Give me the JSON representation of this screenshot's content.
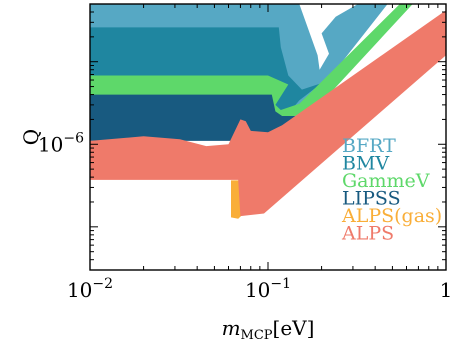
{
  "chart_data": {
    "type": "area",
    "xlabel_main": "m",
    "xlabel_sub": "MCP",
    "xlabel_unit": "[eV]",
    "ylabel": "Q",
    "x_scale": "log",
    "y_scale": "log",
    "xlim": [
      0.01,
      1.0
    ],
    "ylim": [
      3e-08,
      5e-05
    ],
    "x_ticks": [
      {
        "value": 0.01,
        "base": "10",
        "exp": "−2"
      },
      {
        "value": 0.1,
        "base": "10",
        "exp": "−1"
      },
      {
        "value": 1.0,
        "label": "1"
      }
    ],
    "y_ticks": [
      {
        "value": 1e-06,
        "base": "10",
        "exp": "−6"
      }
    ],
    "legend_placement": "lower-right",
    "series": [
      {
        "name": "BFRT",
        "color": "#56a8c4",
        "points": [
          [
            0.01,
            5e-05
          ],
          [
            0.15,
            5e-05
          ],
          [
            0.19,
            1.2e-05
          ],
          [
            0.195,
            8e-06
          ],
          [
            0.22,
            1.25e-05
          ],
          [
            0.2,
            2.2e-05
          ],
          [
            0.24,
            3.5e-05
          ],
          [
            0.32,
            5e-05
          ],
          [
            0.47,
            5e-05
          ],
          [
            0.2,
            4.8e-06
          ],
          [
            0.1,
            1.2e-06
          ],
          [
            0.01,
            1.2e-06
          ]
        ]
      },
      {
        "name": "BMV",
        "color": "#1f86a0",
        "points": [
          [
            0.01,
            2.6e-05
          ],
          [
            0.115,
            2.6e-05
          ],
          [
            0.118,
            1.5e-05
          ],
          [
            0.13,
            6.8e-06
          ],
          [
            0.155,
            4.6e-06
          ],
          [
            0.2,
            5.5e-06
          ],
          [
            0.15,
            3.4e-06
          ],
          [
            0.1,
            1.2e-06
          ],
          [
            0.01,
            1.2e-06
          ]
        ]
      },
      {
        "name": "GammeV",
        "color": "#5ed86a",
        "points": [
          [
            0.01,
            6.8e-06
          ],
          [
            0.1,
            6.8e-06
          ],
          [
            0.13,
            5.3e-06
          ],
          [
            0.11,
            3e-06
          ],
          [
            0.118,
            2.6e-06
          ],
          [
            0.15,
            3.1e-06
          ],
          [
            0.55,
            5e-05
          ],
          [
            0.65,
            5e-05
          ],
          [
            0.18,
            2.5e-06
          ],
          [
            0.1,
            1.2e-06
          ],
          [
            0.01,
            1.2e-06
          ]
        ]
      },
      {
        "name": "LIPSS",
        "color": "#185a80",
        "points": [
          [
            0.01,
            4e-06
          ],
          [
            0.105,
            4e-06
          ],
          [
            0.11,
            2.5e-06
          ],
          [
            0.12,
            2.2e-06
          ],
          [
            0.17,
            2.2e-06
          ],
          [
            0.12,
            1.2e-06
          ],
          [
            0.08,
            1.1e-06
          ],
          [
            0.01,
            1.1e-06
          ]
        ]
      },
      {
        "name": "ALPS(gas)",
        "color": "#f9ae38",
        "points": [
          [
            0.062,
            3.65e-07
          ],
          [
            0.07,
            3.65e-07
          ],
          [
            0.073,
            1.45e-07
          ],
          [
            0.068,
            1.25e-07
          ],
          [
            0.062,
            1.3e-07
          ]
        ]
      },
      {
        "name": "ALPS",
        "color": "#ef7a6a",
        "points": [
          [
            0.01,
            1.1e-06
          ],
          [
            0.02,
            1.25e-06
          ],
          [
            0.032,
            1.15e-06
          ],
          [
            0.045,
            9.5e-07
          ],
          [
            0.06,
            1e-06
          ],
          [
            0.07,
            2e-06
          ],
          [
            0.075,
            1.9e-06
          ],
          [
            0.08,
            1.45e-06
          ],
          [
            0.1,
            1.4e-06
          ],
          [
            0.12,
            1.7e-06
          ],
          [
            1.0,
            4.2e-05
          ],
          [
            1.0,
            1.2e-05
          ],
          [
            0.095,
            1.45e-07
          ],
          [
            0.07,
            1.35e-07
          ],
          [
            0.068,
            3.7e-07
          ],
          [
            0.01,
            3.7e-07
          ]
        ]
      }
    ]
  }
}
